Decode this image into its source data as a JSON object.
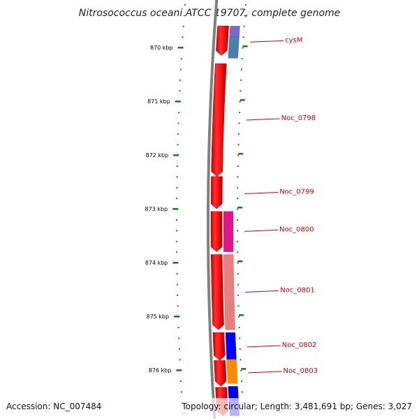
{
  "title": "Nitrosococcus oceani ATCC 19707, complete genome",
  "footer": {
    "accession": "Accession: NC_007484",
    "topology": "Topology: circular; Length: 3,481,691 bp; Genes: 3,027"
  },
  "colors": {
    "backbone": "#808080",
    "tick": "#1a7a1a",
    "label": "#cc0000",
    "forward_gene": "#ff0000"
  },
  "ticks": [
    {
      "label": "870 kbp",
      "kbp": 870
    },
    {
      "label": "871 kbp",
      "kbp": 871
    },
    {
      "label": "872 kbp",
      "kbp": 872
    },
    {
      "label": "873 kbp",
      "kbp": 873
    },
    {
      "label": "874 kbp",
      "kbp": 874
    },
    {
      "label": "875 kbp",
      "kbp": 875
    },
    {
      "label": "876 kbp",
      "kbp": 876
    }
  ],
  "forward_genes": [
    {
      "start": 869.6,
      "end": 870.15
    },
    {
      "start": 870.3,
      "end": 872.4
    },
    {
      "start": 872.4,
      "end": 873.0
    },
    {
      "start": 873.05,
      "end": 873.8
    },
    {
      "start": 873.85,
      "end": 875.25
    },
    {
      "start": 875.3,
      "end": 875.82
    },
    {
      "start": 875.82,
      "end": 876.3
    },
    {
      "start": 876.32,
      "end": 876.85
    }
  ],
  "reverse_genes": [
    {
      "start": 869.6,
      "end": 869.8,
      "color": "#7b68c8"
    },
    {
      "start": 869.8,
      "end": 870.2,
      "color": "#4a7fb0"
    },
    {
      "start": 873.05,
      "end": 873.8,
      "color": "#e0158a"
    },
    {
      "start": 873.85,
      "end": 875.25,
      "color": "#e88080"
    },
    {
      "start": 875.3,
      "end": 875.8,
      "color": "#0000ff"
    },
    {
      "start": 875.8,
      "end": 876.25,
      "color": "#ff8c00"
    },
    {
      "start": 876.3,
      "end": 876.85,
      "color": "#0000ff"
    }
  ],
  "gene_labels": [
    {
      "name": "cysM",
      "kbp": 869.9
    },
    {
      "name": "Noc_0798",
      "kbp": 871.35
    },
    {
      "name": "Noc_0799",
      "kbp": 872.72
    },
    {
      "name": "Noc_0800",
      "kbp": 873.42
    },
    {
      "name": "Noc_0801",
      "kbp": 874.55
    },
    {
      "name": "Noc_0802",
      "kbp": 875.57
    },
    {
      "name": "Noc_0803",
      "kbp": 876.05
    }
  ]
}
